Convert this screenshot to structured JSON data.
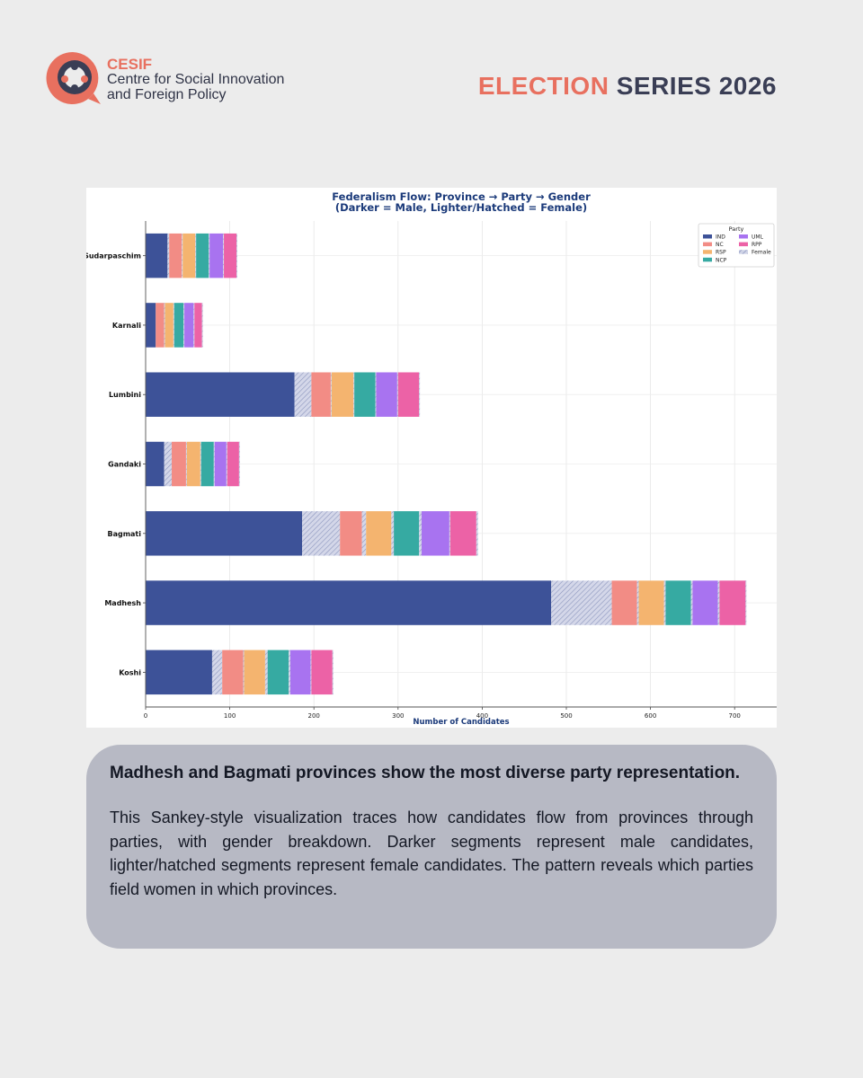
{
  "brand": {
    "acronym": "CESIF",
    "name_line1": "Centre for Social Innovation",
    "name_line2": "and Foreign Policy"
  },
  "series": {
    "accent_word": "ELECTION",
    "rest": "SERIES 2026"
  },
  "colors": {
    "accent": "#e8705f",
    "dark": "#3a3e55"
  },
  "chart_data": {
    "type": "bar",
    "orientation": "horizontal",
    "stacked": true,
    "title": "Federalism Flow: Province → Party → Gender",
    "subtitle": "(Darker = Male, Lighter/Hatched = Female)",
    "xlabel": "Number of Candidates",
    "ylabel": "",
    "xlim": [
      0,
      750
    ],
    "xticks": [
      0,
      100,
      200,
      300,
      400,
      500,
      600,
      700
    ],
    "grid": true,
    "legend": {
      "title": "Party",
      "position": "top-right",
      "items": [
        {
          "label": "IND",
          "color": "#3d5298"
        },
        {
          "label": "UML",
          "color": "#a873f0"
        },
        {
          "label": "NC",
          "color": "#f28c85"
        },
        {
          "label": "RPP",
          "color": "#ec62a6"
        },
        {
          "label": "RSP",
          "color": "#f4b46f"
        },
        {
          "label": "Female",
          "color": "#cfd3e6",
          "hatched": true
        },
        {
          "label": "NCP",
          "color": "#36aaa2"
        }
      ]
    },
    "party_colors": {
      "IND": "#3d5298",
      "NC": "#f28c85",
      "RSP": "#f4b46f",
      "NCP": "#36aaa2",
      "UML": "#a873f0",
      "RPP": "#ec62a6"
    },
    "party_order": [
      "IND",
      "NC",
      "RSP",
      "NCP",
      "UML",
      "RPP"
    ],
    "categories": [
      "Koshi",
      "Madhesh",
      "Bagmati",
      "Gandaki",
      "Lumbini",
      "Karnali",
      "Sudarpaschim"
    ],
    "male": {
      "IND": [
        79,
        482,
        186,
        22,
        177,
        12,
        26
      ],
      "NC": [
        25,
        30,
        26,
        17,
        23,
        10,
        15
      ],
      "RSP": [
        25,
        30,
        30,
        16,
        26,
        10,
        15
      ],
      "NCP": [
        25,
        30,
        30,
        15,
        25,
        11,
        15
      ],
      "UML": [
        24,
        30,
        33,
        14,
        25,
        11,
        16
      ],
      "RPP": [
        25,
        31,
        31,
        14,
        25,
        9,
        15
      ]
    },
    "female": {
      "IND": [
        12,
        72,
        45,
        9,
        20,
        0,
        2
      ],
      "NC": [
        1,
        2,
        5,
        1,
        1,
        1,
        1
      ],
      "RSP": [
        3,
        2,
        3,
        1,
        1,
        1,
        1
      ],
      "NCP": [
        2,
        2,
        3,
        1,
        1,
        1,
        1
      ],
      "UML": [
        1,
        2,
        1,
        1,
        1,
        1,
        1
      ],
      "RPP": [
        1,
        1,
        2,
        1,
        1,
        1,
        1
      ]
    }
  },
  "text": {
    "headline": "Madhesh and Bagmati provinces show the most diverse party representation.",
    "body": "This Sankey-style visualization traces how candidates flow from provinces through parties, with gender breakdown. Darker segments represent male candidates, lighter/hatched segments represent female candidates. The pattern reveals which parties field women in which provinces."
  }
}
